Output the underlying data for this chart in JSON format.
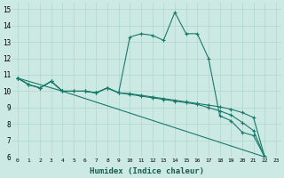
{
  "xlabel": "Humidex (Indice chaleur)",
  "xlim": [
    -0.5,
    23.5
  ],
  "ylim": [
    6,
    15.4
  ],
  "xticks": [
    0,
    1,
    2,
    3,
    4,
    5,
    6,
    7,
    8,
    9,
    10,
    11,
    12,
    13,
    14,
    15,
    16,
    17,
    18,
    19,
    20,
    21,
    22,
    23
  ],
  "yticks": [
    6,
    7,
    8,
    9,
    10,
    11,
    12,
    13,
    14,
    15
  ],
  "background_color": "#cce9e4",
  "grid_color": "#b0d5cc",
  "line_color": "#1a7a6a",
  "lines": [
    {
      "x": [
        0,
        1,
        2,
        3,
        4,
        5,
        6,
        7,
        8,
        9,
        10,
        11,
        12,
        13,
        14,
        15,
        16,
        17,
        18,
        19,
        20,
        21,
        22
      ],
      "y": [
        10.8,
        10.4,
        10.2,
        10.6,
        10.0,
        10.0,
        10.0,
        9.9,
        10.2,
        9.9,
        13.3,
        13.5,
        13.4,
        13.1,
        14.8,
        13.5,
        13.5,
        12.0,
        8.5,
        8.2,
        7.5,
        7.3,
        6.0
      ]
    },
    {
      "x": [
        0,
        1,
        2,
        3,
        4,
        5,
        6,
        7,
        8,
        9,
        10,
        11,
        12,
        13,
        14,
        15,
        16,
        17,
        18,
        19,
        20,
        21,
        22
      ],
      "y": [
        10.8,
        10.4,
        10.2,
        10.6,
        10.0,
        10.0,
        10.0,
        9.9,
        10.2,
        9.9,
        9.85,
        9.75,
        9.65,
        9.55,
        9.45,
        9.35,
        9.25,
        9.15,
        9.05,
        8.9,
        8.7,
        8.4,
        6.0
      ]
    },
    {
      "x": [
        0,
        1,
        2,
        3,
        4,
        5,
        6,
        7,
        8,
        9,
        10,
        11,
        12,
        13,
        14,
        15,
        16,
        17,
        18,
        19,
        20,
        21,
        22
      ],
      "y": [
        10.8,
        10.4,
        10.2,
        10.6,
        10.0,
        10.0,
        10.0,
        9.9,
        10.2,
        9.9,
        9.8,
        9.7,
        9.6,
        9.5,
        9.4,
        9.3,
        9.2,
        9.0,
        8.8,
        8.55,
        8.1,
        7.6,
        6.0
      ]
    },
    {
      "x": [
        0,
        4,
        22
      ],
      "y": [
        10.8,
        10.0,
        6.0
      ]
    }
  ]
}
